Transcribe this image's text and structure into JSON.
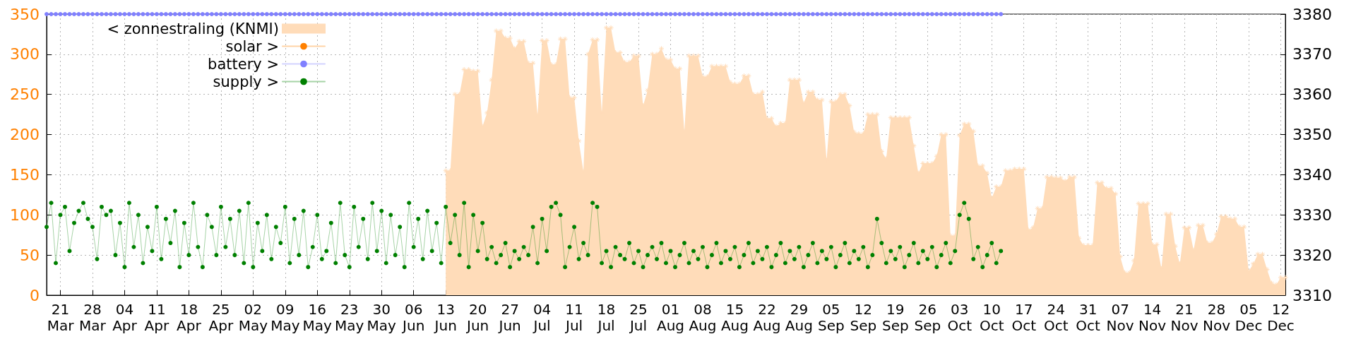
{
  "chart_data": {
    "type": "line",
    "x": [
      "--03-18",
      "--03-19",
      "--03-20",
      "--03-21",
      "--03-22",
      "--03-23",
      "--03-24",
      "--03-25",
      "--03-26",
      "--03-27",
      "--03-28",
      "--03-29",
      "--03-30",
      "--03-31",
      "--04-01",
      "--04-02",
      "--04-03",
      "--04-04",
      "--04-05",
      "--04-06",
      "--04-07",
      "--04-08",
      "--04-09",
      "--04-10",
      "--04-11",
      "--04-12",
      "--04-13",
      "--04-14",
      "--04-15",
      "--04-16",
      "--04-17",
      "--04-18",
      "--04-19",
      "--04-20",
      "--04-21",
      "--04-22",
      "--04-23",
      "--04-24",
      "--04-25",
      "--04-26",
      "--04-27",
      "--04-28",
      "--04-29",
      "--04-30",
      "--05-01",
      "--05-02",
      "--05-03",
      "--05-04",
      "--05-05",
      "--05-06",
      "--05-07",
      "--05-08",
      "--05-09",
      "--05-10",
      "--05-11",
      "--05-12",
      "--05-13",
      "--05-14",
      "--05-15",
      "--05-16",
      "--05-17",
      "--05-18",
      "--05-19",
      "--05-20",
      "--05-21",
      "--05-22",
      "--05-23",
      "--05-24",
      "--05-25",
      "--05-26",
      "--05-27",
      "--05-28",
      "--05-29",
      "--05-30",
      "--05-31",
      "--06-01",
      "--06-02",
      "--06-03",
      "--06-04",
      "--06-05",
      "--06-06",
      "--06-07",
      "--06-08",
      "--06-09",
      "--06-10",
      "--06-11",
      "--06-12",
      "--06-13",
      "--06-14",
      "--06-15",
      "--06-16",
      "--06-17",
      "--06-18",
      "--06-19",
      "--06-20",
      "--06-21",
      "--06-22",
      "--06-23",
      "--06-24",
      "--06-25",
      "--06-26",
      "--06-27",
      "--06-28",
      "--06-29",
      "--06-30",
      "--07-01",
      "--07-02",
      "--07-03",
      "--07-04",
      "--07-05",
      "--07-06",
      "--07-07",
      "--07-08",
      "--07-09",
      "--07-10",
      "--07-11",
      "--07-12",
      "--07-13",
      "--07-14",
      "--07-15",
      "--07-16",
      "--07-17",
      "--07-18",
      "--07-19",
      "--07-20",
      "--07-21",
      "--07-22",
      "--07-23",
      "--07-24",
      "--07-25",
      "--07-26",
      "--07-27",
      "--07-28",
      "--07-29",
      "--07-30",
      "--07-31",
      "--08-01",
      "--08-02",
      "--08-03",
      "--08-04",
      "--08-05",
      "--08-06",
      "--08-07",
      "--08-08",
      "--08-09",
      "--08-10",
      "--08-11",
      "--08-12",
      "--08-13",
      "--08-14",
      "--08-15",
      "--08-16",
      "--08-17",
      "--08-18",
      "--08-19",
      "--08-20",
      "--08-21",
      "--08-22",
      "--08-23",
      "--08-24",
      "--08-25",
      "--08-26",
      "--08-27",
      "--08-28",
      "--08-29",
      "--08-30",
      "--08-31",
      "--09-01",
      "--09-02",
      "--09-03",
      "--09-04",
      "--09-05",
      "--09-06",
      "--09-07",
      "--09-08",
      "--09-09",
      "--09-10",
      "--09-11",
      "--09-12",
      "--09-13",
      "--09-14",
      "--09-15",
      "--09-16",
      "--09-17",
      "--09-18",
      "--09-19",
      "--09-20",
      "--09-21",
      "--09-22",
      "--09-23",
      "--09-24",
      "--09-25",
      "--09-26",
      "--09-27",
      "--09-28",
      "--09-29",
      "--09-30",
      "--10-01",
      "--10-02",
      "--10-03",
      "--10-04",
      "--10-05",
      "--10-06",
      "--10-07",
      "--10-08",
      "--10-09",
      "--10-10",
      "--10-11",
      "--10-12",
      "--10-13",
      "--10-14",
      "--10-15",
      "--10-16",
      "--10-17",
      "--10-18",
      "--10-19",
      "--10-20",
      "--10-21",
      "--10-22",
      "--10-23",
      "--10-24",
      "--10-25",
      "--10-26",
      "--10-27",
      "--10-28",
      "--10-29",
      "--10-30",
      "--10-31",
      "--11-01",
      "--11-02",
      "--11-03",
      "--11-04",
      "--11-05",
      "--11-06",
      "--11-07",
      "--11-08",
      "--11-09",
      "--11-10",
      "--11-11",
      "--11-12",
      "--11-13",
      "--11-14",
      "--11-15",
      "--11-16",
      "--11-17",
      "--11-18",
      "--11-19",
      "--11-20",
      "--11-21",
      "--11-22",
      "--11-23",
      "--11-24",
      "--11-25",
      "--11-26",
      "--11-27",
      "--11-28",
      "--11-29",
      "--11-30",
      "--12-01",
      "--12-02",
      "--12-03",
      "--12-04",
      "--12-05",
      "--12-06",
      "--12-07",
      "--12-08",
      "--12-09",
      "--12-10",
      "--12-11",
      "--12-12",
      "--12-13"
    ],
    "xlim": [
      "--03-18",
      "--12-13"
    ],
    "xticks": [
      {
        "value": "--03-21",
        "label": "21\nMar"
      },
      {
        "value": "--03-28",
        "label": "28\nMar"
      },
      {
        "value": "--04-04",
        "label": "04\nApr"
      },
      {
        "value": "--04-11",
        "label": "11\nApr"
      },
      {
        "value": "--04-18",
        "label": "18\nApr"
      },
      {
        "value": "--04-25",
        "label": "25\nApr"
      },
      {
        "value": "--05-02",
        "label": "02\nMay"
      },
      {
        "value": "--05-09",
        "label": "09\nMay"
      },
      {
        "value": "--05-16",
        "label": "16\nMay"
      },
      {
        "value": "--05-23",
        "label": "23\nMay"
      },
      {
        "value": "--05-30",
        "label": "30\nMay"
      },
      {
        "value": "--06-06",
        "label": "06\nJun"
      },
      {
        "value": "--06-13",
        "label": "13\nJun"
      },
      {
        "value": "--06-20",
        "label": "20\nJun"
      },
      {
        "value": "--06-27",
        "label": "27\nJun"
      },
      {
        "value": "--07-04",
        "label": "04\nJul"
      },
      {
        "value": "--07-11",
        "label": "11\nJul"
      },
      {
        "value": "--07-18",
        "label": "18\nJul"
      },
      {
        "value": "--07-25",
        "label": "25\nJul"
      },
      {
        "value": "--08-01",
        "label": "01\nAug"
      },
      {
        "value": "--08-08",
        "label": "08\nAug"
      },
      {
        "value": "--08-15",
        "label": "15\nAug"
      },
      {
        "value": "--08-22",
        "label": "22\nAug"
      },
      {
        "value": "--08-29",
        "label": "29\nAug"
      },
      {
        "value": "--09-05",
        "label": "05\nSep"
      },
      {
        "value": "--09-12",
        "label": "12\nSep"
      },
      {
        "value": "--09-19",
        "label": "19\nSep"
      },
      {
        "value": "--09-26",
        "label": "26\nSep"
      },
      {
        "value": "--10-03",
        "label": "03\nOct"
      },
      {
        "value": "--10-10",
        "label": "10\nOct"
      },
      {
        "value": "--10-17",
        "label": "17\nOct"
      },
      {
        "value": "--10-24",
        "label": "24\nOct"
      },
      {
        "value": "--10-31",
        "label": "31\nOct"
      },
      {
        "value": "--11-07",
        "label": "07\nNov"
      },
      {
        "value": "--11-14",
        "label": "14\nNov"
      },
      {
        "value": "--11-21",
        "label": "21\nNov"
      },
      {
        "value": "--11-28",
        "label": "28\nNov"
      },
      {
        "value": "--12-05",
        "label": "05\nDec"
      },
      {
        "value": "--12-12",
        "label": "12\nDec"
      }
    ],
    "ylim": [
      0,
      350
    ],
    "yticks": [
      0,
      50,
      100,
      150,
      200,
      250,
      300,
      350
    ],
    "y2lim": [
      3310,
      3380
    ],
    "y2ticks": [
      3310,
      3320,
      3330,
      3340,
      3350,
      3360,
      3370,
      3380
    ],
    "grid": true,
    "legend": "top left",
    "marker": "circle",
    "series": [
      {
        "name": "< zonnestraling (KNMI)",
        "type": "area",
        "marker": "cross",
        "color": "#ffdcb9",
        "values": [
          null,
          null,
          null,
          null,
          null,
          null,
          null,
          null,
          null,
          null,
          null,
          null,
          null,
          null,
          null,
          null,
          null,
          null,
          null,
          null,
          null,
          null,
          null,
          null,
          null,
          null,
          null,
          null,
          null,
          null,
          null,
          null,
          null,
          null,
          null,
          null,
          null,
          null,
          null,
          null,
          null,
          null,
          null,
          null,
          null,
          null,
          null,
          null,
          null,
          null,
          null,
          null,
          null,
          null,
          null,
          null,
          null,
          null,
          null,
          null,
          null,
          null,
          null,
          null,
          null,
          null,
          null,
          null,
          null,
          null,
          null,
          null,
          null,
          null,
          null,
          null,
          null,
          null,
          null,
          null,
          null,
          null,
          null,
          null,
          null,
          null,
          null,
          155,
          155,
          250,
          250,
          281,
          281,
          279,
          279,
          210,
          227,
          268,
          329,
          329,
          320,
          320,
          307,
          316,
          316,
          289,
          289,
          224,
          317,
          317,
          287,
          287,
          319,
          319,
          246,
          246,
          192,
          154,
          300,
          318,
          318,
          227,
          333,
          333,
          302,
          302,
          290,
          290,
          298,
          298,
          236,
          255,
          300,
          300,
          307,
          293,
          293,
          282,
          282,
          204,
          298,
          298,
          298,
          272,
          272,
          285,
          285,
          285,
          285,
          265,
          263,
          263,
          273,
          273,
          250,
          250,
          253,
          220,
          220,
          210,
          214,
          214,
          268,
          268,
          268,
          239,
          253,
          253,
          243,
          243,
          168,
          241,
          241,
          250,
          250,
          236,
          203,
          201,
          201,
          225,
          225,
          225,
          179,
          170,
          221,
          221,
          221,
          221,
          221,
          186,
          152,
          164,
          164,
          164,
          173,
          200,
          200,
          74,
          74,
          199,
          213,
          213,
          204,
          161,
          161,
          152,
          121,
          135,
          135,
          155,
          155,
          157,
          157,
          157,
          81,
          84,
          108,
          108,
          147,
          147,
          146,
          146,
          142,
          147,
          147,
          71,
          62,
          62,
          62,
          140,
          140,
          133,
          133,
          126,
          48,
          28,
          28,
          43,
          114,
          114,
          114,
          63,
          63,
          33,
          101,
          101,
          61,
          39,
          84,
          84,
          56,
          87,
          87,
          65,
          65,
          76,
          98,
          98,
          95,
          95,
          85,
          85,
          30,
          39,
          51,
          51,
          32,
          15,
          13,
          22,
          22
        ]
      },
      {
        "name": "solar >",
        "color": "#ff8000",
        "axis": "y2",
        "values": [
          null,
          null,
          null,
          null,
          null,
          null,
          null,
          null,
          null,
          null,
          null,
          null,
          null,
          null,
          null,
          null,
          null,
          null,
          null,
          null,
          null,
          null,
          null,
          null,
          null,
          null,
          null,
          null,
          null,
          null,
          null,
          null,
          null,
          null,
          null,
          null,
          null,
          null,
          null,
          null,
          null,
          null,
          null,
          null,
          null,
          null,
          null,
          null,
          null,
          null,
          null,
          null,
          null,
          null,
          null,
          null,
          null,
          null,
          null,
          null,
          null,
          null,
          null,
          null,
          null,
          null,
          null,
          null,
          null,
          null,
          null,
          null,
          null,
          null,
          null,
          null,
          null,
          null,
          null,
          null,
          null,
          null,
          null,
          null,
          null,
          null,
          null,
          null,
          null,
          null,
          null,
          null,
          null,
          null,
          null,
          null,
          null,
          null,
          null,
          null,
          null,
          null,
          null,
          null,
          null,
          null,
          null,
          null,
          null,
          null,
          null,
          null,
          null,
          null,
          null,
          null,
          null,
          null,
          null,
          null,
          null,
          null,
          null,
          null,
          null,
          null,
          null,
          null,
          null,
          null,
          null,
          null,
          null,
          null,
          null,
          null,
          null,
          null,
          null,
          null,
          null,
          null,
          null,
          null,
          null,
          null,
          null,
          null,
          null,
          null,
          null,
          null,
          null,
          null,
          null,
          null,
          null,
          null,
          null,
          null,
          null,
          null,
          null,
          null,
          null,
          null,
          null,
          null,
          null,
          null,
          null,
          null,
          null,
          null,
          null,
          null,
          null,
          null,
          null,
          null,
          null,
          null,
          null,
          null,
          null,
          null,
          null,
          null,
          null,
          null,
          null,
          null,
          null,
          null,
          null,
          null,
          null,
          null,
          null,
          null,
          null,
          null,
          null,
          null,
          null,
          null,
          null,
          null,
          null,
          null,
          null,
          null,
          null,
          null,
          null,
          null,
          null,
          null,
          null,
          null,
          null,
          null,
          null,
          null,
          null,
          null,
          null,
          null,
          null,
          null,
          null,
          null,
          null,
          null,
          null,
          null,
          null,
          null,
          null,
          null,
          null,
          null,
          null,
          null,
          null,
          null,
          null,
          null,
          null,
          null,
          null,
          null,
          null,
          null,
          null,
          null,
          null,
          null,
          null,
          null,
          null,
          null,
          null,
          null,
          null,
          null,
          null,
          null,
          null,
          null,
          null
        ]
      },
      {
        "name": "battery >",
        "color": "#8080ff",
        "axis": "y2",
        "values": [
          3380,
          3380,
          3380,
          3380,
          3380,
          3380,
          3380,
          3380,
          3380,
          3380,
          3380,
          3380,
          3380,
          3380,
          3380,
          3380,
          3380,
          3380,
          3380,
          3380,
          3380,
          3380,
          3380,
          3380,
          3380,
          3380,
          3380,
          3380,
          3380,
          3380,
          3380,
          3380,
          3380,
          3380,
          3380,
          3380,
          3380,
          3380,
          3380,
          3380,
          3380,
          3380,
          3380,
          3380,
          3380,
          3380,
          3380,
          3380,
          3380,
          3380,
          3380,
          3380,
          3380,
          3380,
          3380,
          3380,
          3380,
          3380,
          3380,
          3380,
          3380,
          3380,
          3380,
          3380,
          3380,
          3380,
          3380,
          3380,
          3380,
          3380,
          3380,
          3380,
          3380,
          3380,
          3380,
          3380,
          3380,
          3380,
          3380,
          3380,
          3380,
          3380,
          3380,
          3380,
          3380,
          3380,
          3380,
          3380,
          3380,
          3380,
          3380,
          3380,
          3380,
          3380,
          3380,
          3380,
          3380,
          3380,
          3380,
          3380,
          3380,
          3380,
          3380,
          3380,
          3380,
          3380,
          3380,
          3380,
          3380,
          3380,
          3380,
          3380,
          3380,
          3380,
          3380,
          3380,
          3380,
          3380,
          3380,
          3380,
          3380,
          3380,
          3380,
          3380,
          3380,
          3380,
          3380,
          3380,
          3380,
          3380,
          3380,
          3380,
          3380,
          3380,
          3380,
          3380,
          3380,
          3380,
          3380,
          3380,
          3380,
          3380,
          3380,
          3380,
          3380,
          3380,
          3380,
          3380,
          3380,
          3380,
          3380,
          3380,
          3380,
          3380,
          3380,
          3380,
          3380,
          3380,
          3380,
          3380,
          3380,
          3380,
          3380,
          3380,
          3380,
          3380,
          3380,
          3380,
          3380,
          3380,
          3380,
          3380,
          3380,
          3380,
          3380,
          3380,
          3380,
          3380,
          3380,
          3380,
          3380,
          3380,
          3380,
          3380,
          3380,
          3380,
          3380,
          3380,
          3380,
          3380,
          3380,
          3380,
          3380,
          3380,
          3380,
          3380,
          3380,
          3380,
          3380,
          3380,
          3380,
          3380,
          3380,
          3380,
          3380,
          3380,
          3380,
          3380,
          3380,
          null,
          null,
          null,
          null,
          null,
          null,
          null,
          null,
          null,
          null,
          null,
          null,
          null,
          null,
          null,
          null,
          null,
          null,
          null,
          null,
          null,
          null,
          null,
          null,
          null,
          null,
          null,
          null,
          null,
          null,
          null,
          null,
          null,
          null,
          null,
          null,
          null,
          null,
          null,
          null,
          null,
          null,
          null,
          null,
          null,
          null,
          null,
          null,
          null,
          null,
          null,
          null,
          null,
          null,
          null,
          null,
          null,
          null,
          null,
          null,
          null,
          null
        ]
      },
      {
        "name": "supply >",
        "color": "#008000",
        "axis": "y2",
        "values": [
          3327,
          3333,
          3318,
          3330,
          3332,
          3321,
          3328,
          3331,
          3333,
          3329,
          3327,
          3319,
          3332,
          3330,
          3331,
          3320,
          3328,
          3317,
          3333,
          3322,
          3330,
          3318,
          3327,
          3321,
          3332,
          3319,
          3329,
          3323,
          3331,
          3317,
          3328,
          3320,
          3333,
          3322,
          3317,
          3330,
          3327,
          3320,
          3332,
          3322,
          3329,
          3320,
          3331,
          3318,
          3333,
          3317,
          3328,
          3321,
          3330,
          3319,
          3327,
          3323,
          3332,
          3318,
          3329,
          3320,
          3331,
          3317,
          3322,
          3330,
          3319,
          3321,
          3328,
          3318,
          3333,
          3320,
          3317,
          3332,
          3322,
          3329,
          3319,
          3333,
          3321,
          3331,
          3318,
          3330,
          3320,
          3327,
          3317,
          3333,
          3322,
          3329,
          3319,
          3331,
          3321,
          3328,
          3318,
          3332,
          3323,
          3330,
          3320,
          3333,
          3317,
          3330,
          3321,
          3328,
          3319,
          3322,
          3318,
          3320,
          3323,
          3317,
          3321,
          3319,
          3322,
          3320,
          3327,
          3318,
          3329,
          3321,
          3332,
          3333,
          3330,
          3317,
          3322,
          3327,
          3319,
          3323,
          3320,
          3333,
          3332,
          3318,
          3321,
          3317,
          3322,
          3320,
          3319,
          3323,
          3318,
          3321,
          3317,
          3320,
          3322,
          3319,
          3323,
          3318,
          3321,
          3317,
          3320,
          3323,
          3318,
          3321,
          3319,
          3322,
          3317,
          3320,
          3323,
          3318,
          3321,
          3319,
          3322,
          3317,
          3320,
          3323,
          3318,
          3321,
          3319,
          3322,
          3317,
          3320,
          3323,
          3318,
          3321,
          3319,
          3322,
          3317,
          3320,
          3323,
          3318,
          3321,
          3319,
          3322,
          3317,
          3320,
          3323,
          3318,
          3321,
          3319,
          3322,
          3317,
          3320,
          3329,
          3323,
          3318,
          3321,
          3319,
          3322,
          3317,
          3320,
          3323,
          3318,
          3321,
          3319,
          3322,
          3317,
          3320,
          3323,
          3318,
          3321,
          3330,
          3333,
          3329,
          3319,
          3322,
          3317,
          3320,
          3323,
          3318,
          3321,
          null,
          null,
          null,
          null,
          null,
          null,
          null,
          null,
          null,
          null,
          null,
          null,
          null,
          null,
          null,
          null,
          null,
          null,
          null,
          null,
          null,
          null,
          null,
          null,
          null,
          null,
          null,
          null,
          null,
          null,
          null,
          null,
          null,
          null,
          null,
          null,
          null,
          null,
          null,
          null,
          null,
          null,
          null,
          null,
          null,
          null,
          null,
          null,
          null,
          null,
          null,
          null,
          null,
          null,
          null,
          null,
          null,
          null,
          null,
          null,
          null,
          null
        ]
      }
    ]
  }
}
